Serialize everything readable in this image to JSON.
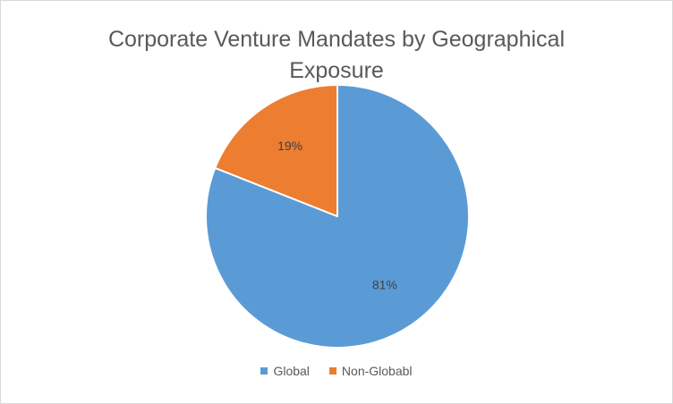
{
  "chart_data": {
    "type": "pie",
    "title": "Corporate Venture Mandates by Geographical Exposure",
    "categories": [
      "Global",
      "Non-Globabl"
    ],
    "values": [
      81,
      19
    ],
    "labels": [
      "81%",
      "19%"
    ],
    "colors": [
      "#5B9BD5",
      "#ED7D31"
    ],
    "legend_position": "bottom"
  }
}
